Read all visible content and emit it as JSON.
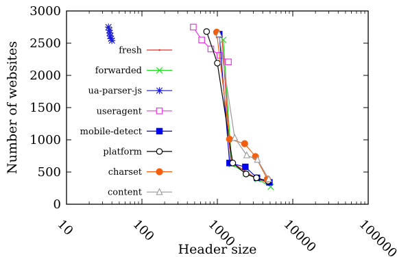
{
  "chart_data": {
    "type": "line",
    "title": "",
    "xlabel": "Header size",
    "ylabel": "Number of websites",
    "x_scale": "log",
    "xlim": [
      10,
      100000
    ],
    "ylim": [
      0,
      3000
    ],
    "x_ticks": [
      10,
      100,
      1000,
      10000,
      100000
    ],
    "x_tick_labels": [
      "10",
      "100",
      "1000",
      "10000",
      "100000"
    ],
    "y_ticks": [
      0,
      500,
      1000,
      1500,
      2000,
      2500,
      3000
    ],
    "y_tick_labels": [
      "0",
      "500",
      "1000",
      "1500",
      "2000",
      "2500",
      "3000"
    ],
    "grid": false,
    "legend_position": "top-left",
    "series": [
      {
        "name": "fresh",
        "color": "#e0302a",
        "marker": "dot",
        "points": [
          [
            1030,
            2650
          ],
          [
            1150,
            2600
          ],
          [
            1500,
            660
          ],
          [
            2300,
            520
          ],
          [
            3300,
            400
          ],
          [
            4800,
            330
          ]
        ]
      },
      {
        "name": "forwarded",
        "color": "#22dd22",
        "marker": "x",
        "points": [
          [
            1050,
            2620
          ],
          [
            1200,
            2550
          ],
          [
            1550,
            620
          ],
          [
            2400,
            480
          ],
          [
            3400,
            390
          ],
          [
            5100,
            270
          ]
        ]
      },
      {
        "name": "ua-parser-js",
        "color": "#1a1ad8",
        "marker": "star",
        "points": [
          [
            36,
            2750
          ],
          [
            37,
            2700
          ],
          [
            37.5,
            2660
          ],
          [
            38,
            2610
          ],
          [
            39,
            2570
          ],
          [
            40,
            2540
          ]
        ]
      },
      {
        "name": "useragent",
        "color": "#ee33ee",
        "marker": "open-square",
        "points": [
          [
            480,
            2750
          ],
          [
            620,
            2550
          ],
          [
            820,
            2410
          ],
          [
            1080,
            2310
          ],
          [
            1400,
            2210
          ]
        ]
      },
      {
        "name": "mobile-detect",
        "color": "#0000ee",
        "marker": "filled-square",
        "points": [
          [
            1060,
            2640
          ],
          [
            1450,
            640
          ],
          [
            2350,
            580
          ],
          [
            3350,
            410
          ],
          [
            4900,
            340
          ]
        ]
      },
      {
        "name": "platform",
        "color": "#000000",
        "marker": "open-circle",
        "points": [
          [
            720,
            2680
          ],
          [
            1000,
            2190
          ],
          [
            1600,
            640
          ],
          [
            2400,
            470
          ],
          [
            3300,
            410
          ],
          [
            4700,
            360
          ]
        ]
      },
      {
        "name": "charset",
        "color": "#f06010",
        "marker": "filled-circle",
        "points": [
          [
            980,
            2670
          ],
          [
            1450,
            1010
          ],
          [
            2300,
            940
          ],
          [
            3200,
            740
          ],
          [
            4600,
            390
          ]
        ]
      },
      {
        "name": "content",
        "color": "#999999",
        "marker": "open-triangle",
        "points": [
          [
            1050,
            2640
          ],
          [
            1700,
            1030
          ],
          [
            2450,
            760
          ],
          [
            3400,
            690
          ],
          [
            4800,
            390
          ]
        ]
      }
    ]
  }
}
